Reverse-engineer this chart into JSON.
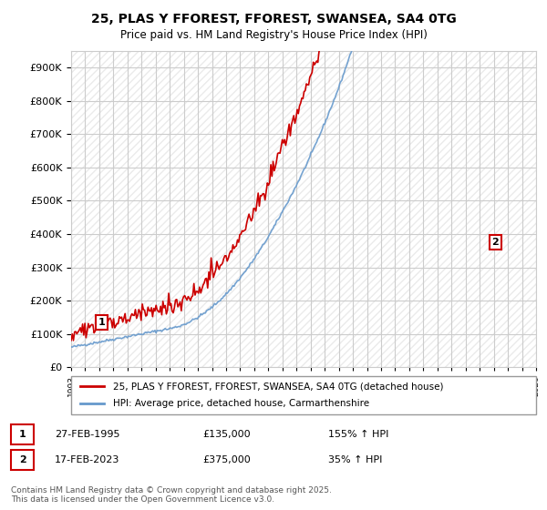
{
  "title_line1": "25, PLAS Y FFOREST, FFOREST, SWANSEA, SA4 0TG",
  "title_line2": "Price paid vs. HM Land Registry's House Price Index (HPI)",
  "background_color": "#ffffff",
  "grid_color": "#cccccc",
  "red_line_color": "#cc0000",
  "blue_line_color": "#6699cc",
  "annotation1_year": 1995.15,
  "annotation1_value": 135000,
  "annotation2_year": 2023.12,
  "annotation2_value": 375000,
  "legend_label1": "25, PLAS Y FFOREST, FFOREST, SWANSEA, SA4 0TG (detached house)",
  "legend_label2": "HPI: Average price, detached house, Carmarthenshire",
  "note1_date": "27-FEB-1995",
  "note1_price": "£135,000",
  "note1_hpi": "155% ↑ HPI",
  "note2_date": "17-FEB-2023",
  "note2_price": "£375,000",
  "note2_hpi": "35% ↑ HPI",
  "footer": "Contains HM Land Registry data © Crown copyright and database right 2025.\nThis data is licensed under the Open Government Licence v3.0.",
  "ylim_max": 950000,
  "xmin": 1993,
  "xmax": 2026
}
